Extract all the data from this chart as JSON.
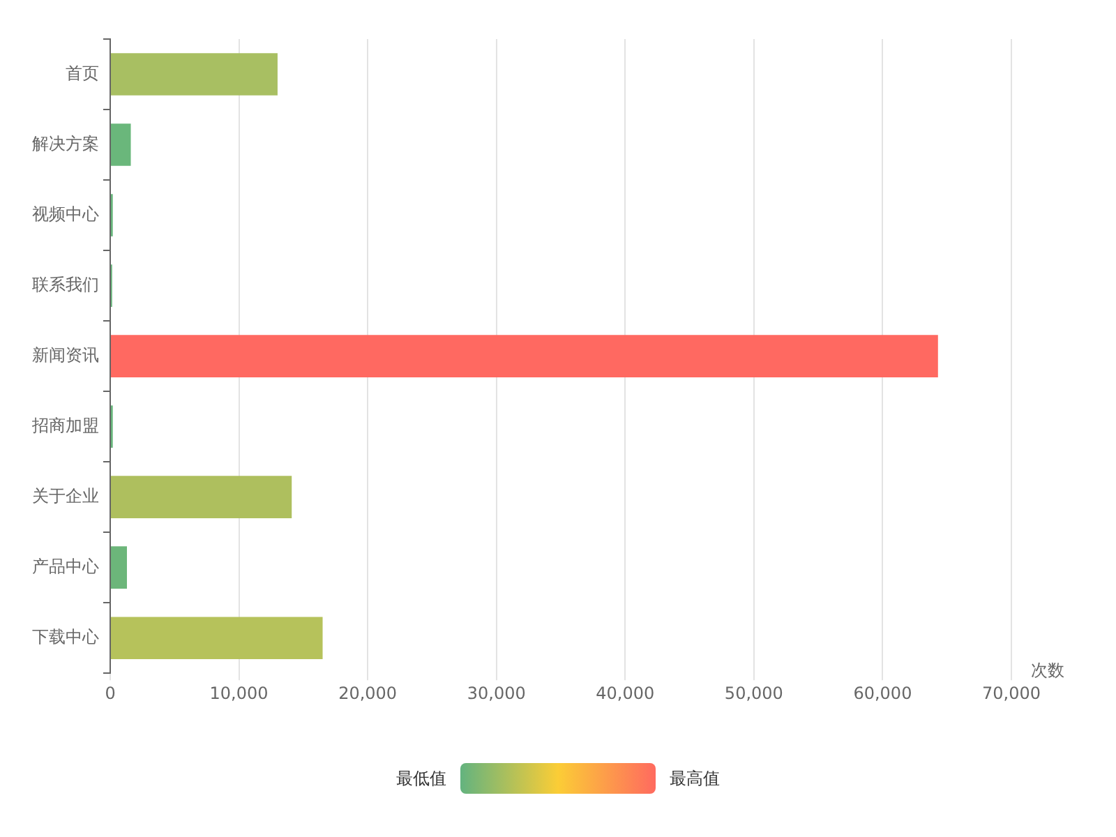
{
  "chart_data": {
    "type": "bar",
    "orientation": "horizontal",
    "xlabel": "次数",
    "categories": [
      "首页",
      "解决方案",
      "视频中心",
      "联系我们",
      "新闻资讯",
      "招商加盟",
      "关于企业",
      "产品中心",
      "下载中心"
    ],
    "values": [
      13000,
      1600,
      200,
      150,
      64300,
      200,
      14100,
      1300,
      16500
    ],
    "colors": [
      "#a8bf62",
      "#6ab77b",
      "#68b57c",
      "#68b57c",
      "#ff6961",
      "#68b57c",
      "#aebf5e",
      "#6cb67a",
      "#b6c25b"
    ],
    "xlim": [
      0,
      70000
    ],
    "xticks": [
      {
        "value": 0,
        "label": "0"
      },
      {
        "value": 10000,
        "label": "10,000"
      },
      {
        "value": 20000,
        "label": "20,000"
      },
      {
        "value": 30000,
        "label": "30,000"
      },
      {
        "value": 40000,
        "label": "40,000"
      },
      {
        "value": 50000,
        "label": "50,000"
      },
      {
        "value": 60000,
        "label": "60,000"
      },
      {
        "value": 70000,
        "label": "70,000"
      }
    ],
    "grid": "x",
    "legend": false,
    "annotations": [
      "最低值",
      "最高值"
    ]
  }
}
